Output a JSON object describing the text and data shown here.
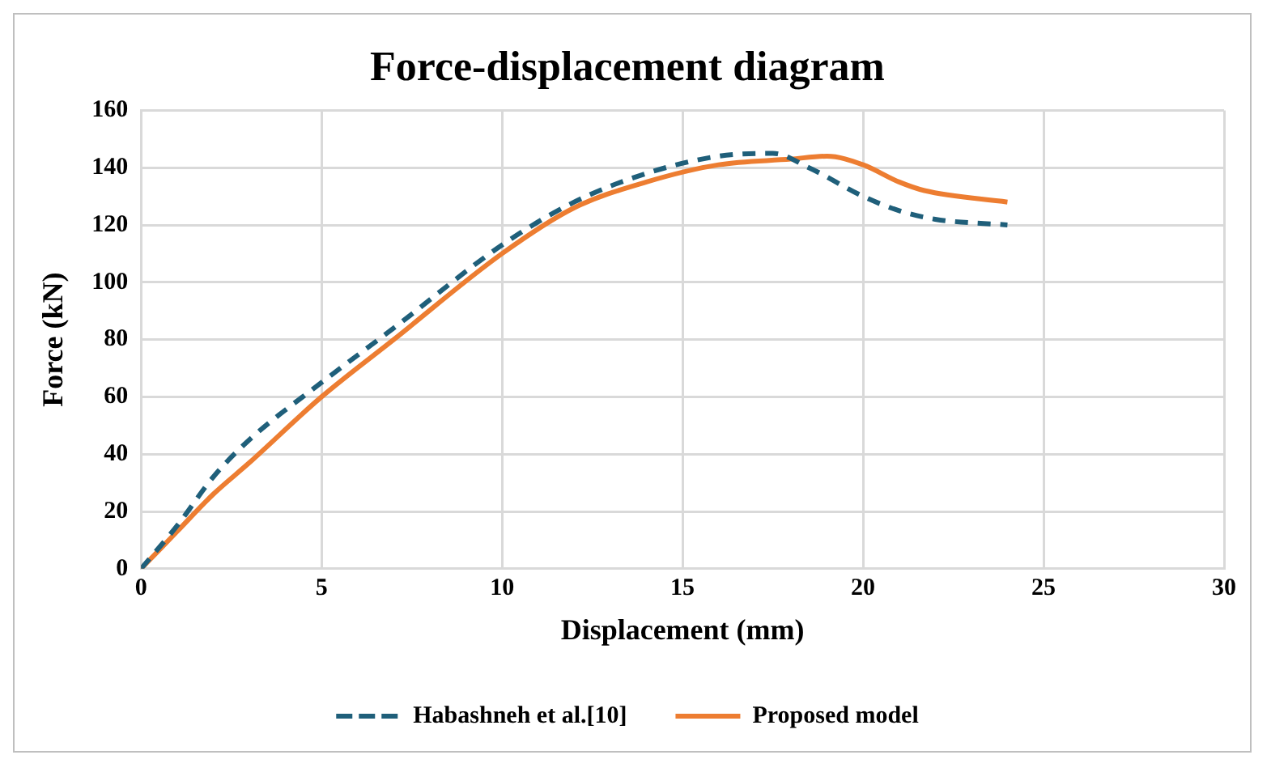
{
  "chart_data": {
    "type": "line",
    "title": "Force-displacement diagram",
    "xlabel": "Displacement (mm)",
    "ylabel": "Force (kN)",
    "xlim": [
      0,
      30
    ],
    "xticks": [
      0,
      5,
      10,
      15,
      20,
      25,
      30
    ],
    "ylim": [
      0,
      160
    ],
    "yticks": [
      0,
      20,
      40,
      60,
      80,
      100,
      120,
      140,
      160
    ],
    "grid": true,
    "legend": "bottom",
    "series": [
      {
        "name": "Habashneh et al.[10]",
        "color": "#1f5f7a",
        "line_style": "dashed",
        "x": [
          0,
          1,
          2,
          3,
          5,
          7,
          10,
          12,
          14,
          16,
          17.5,
          18.5,
          20,
          21,
          22,
          24
        ],
        "values": [
          0,
          15,
          32,
          45,
          65,
          84,
          113,
          128,
          138,
          144,
          145,
          140,
          130,
          125,
          122,
          120
        ]
      },
      {
        "name": "Proposed model",
        "color": "#ed7d31",
        "line_style": "solid",
        "x": [
          0,
          1,
          2,
          3,
          5,
          7,
          10,
          12,
          14,
          16,
          18,
          19,
          20,
          21,
          21.7,
          24
        ],
        "values": [
          0,
          13,
          26,
          37,
          60,
          80,
          110,
          126,
          135,
          141,
          143,
          144,
          141,
          135,
          132,
          128
        ]
      }
    ]
  }
}
